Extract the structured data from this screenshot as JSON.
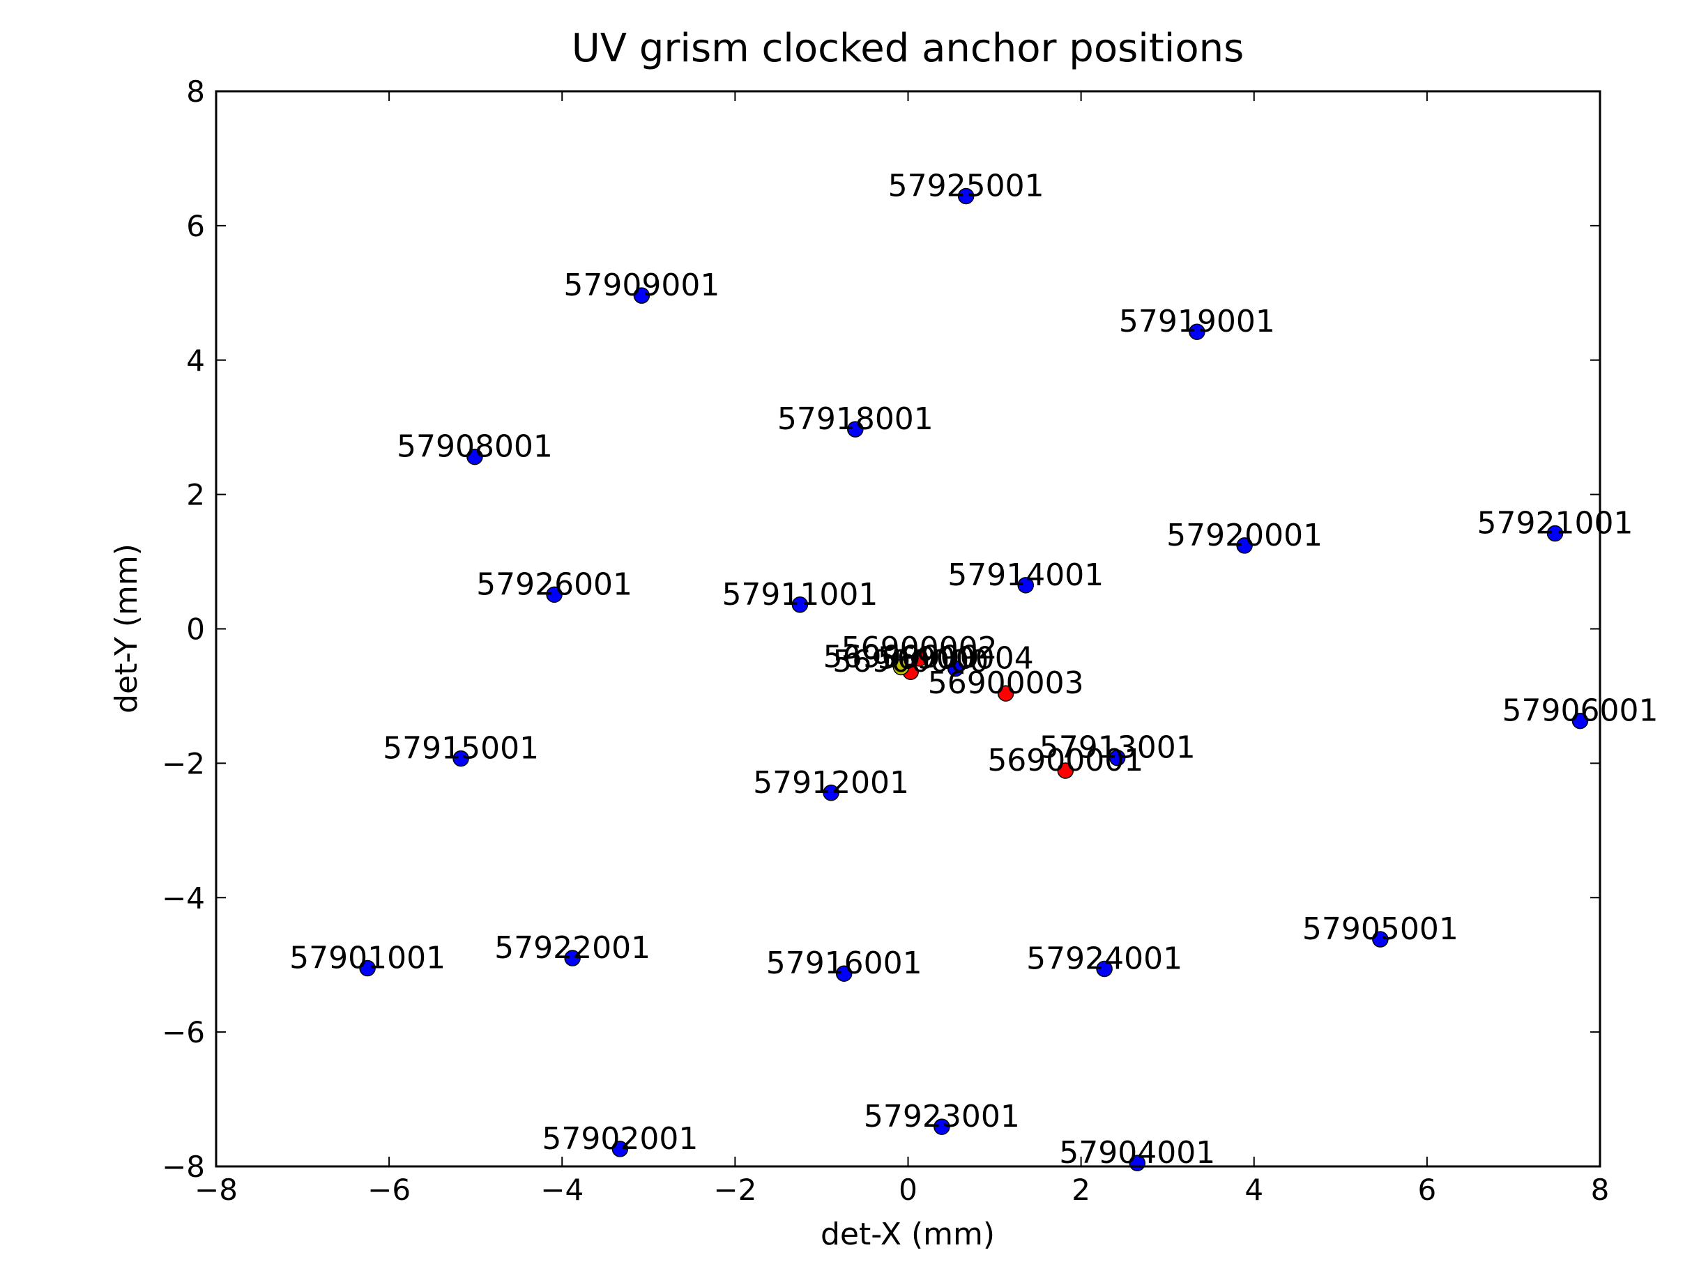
{
  "chart_data": {
    "type": "scatter",
    "title": "UV grism clocked anchor positions",
    "x_label": "det-X (mm)",
    "y_label": "det-Y (mm)",
    "xlim": [
      -8,
      8
    ],
    "ylim": [
      -8,
      8
    ],
    "xticks": [
      {
        "value": -8,
        "label": "−8"
      },
      {
        "value": -6,
        "label": "−6"
      },
      {
        "value": -4,
        "label": "−4"
      },
      {
        "value": -2,
        "label": "−2"
      },
      0,
      2,
      4,
      6,
      8
    ],
    "yticks": [
      {
        "value": -8,
        "label": "−8"
      },
      {
        "value": -6,
        "label": "−6"
      },
      {
        "value": -4,
        "label": "−4"
      },
      {
        "value": -2,
        "label": "−2"
      },
      0,
      2,
      4,
      6,
      8
    ],
    "grid": false,
    "series": [
      {
        "color": "#0000ff",
        "x": [
          0.67,
          -3.08,
          3.34,
          -0.61,
          -5.01,
          7.48,
          3.89,
          1.36,
          -4.09,
          -1.25,
          7.77,
          -5.17,
          2.42,
          -0.89,
          5.46,
          -6.25,
          -3.88,
          -0.74,
          2.27,
          0.39,
          -3.33,
          2.65,
          0.55
        ],
        "values": [
          6.44,
          4.96,
          4.42,
          2.97,
          2.56,
          1.42,
          1.24,
          0.65,
          0.51,
          0.36,
          -1.37,
          -1.93,
          -1.92,
          -2.44,
          -4.62,
          -5.05,
          -4.9,
          -5.13,
          -5.06,
          -7.41,
          -7.74,
          -7.95,
          -0.59
        ],
        "labels": [
          "57925001",
          "57909001",
          "57919001",
          "57918001",
          "57908001",
          "57921001",
          "57920001",
          "57914001",
          "57926001",
          "57911001",
          "57906001",
          "57915001",
          "57913001",
          "57912001",
          "57905001",
          "57901001",
          "57922001",
          "57916001",
          "57924001",
          "57923001",
          "57902001",
          "57904001",
          "56900004"
        ]
      },
      {
        "color": "#ff0000",
        "x": [
          1.82,
          1.13,
          0.13,
          0.03
        ],
        "values": [
          -2.11,
          -0.96,
          -0.44,
          -0.64
        ],
        "labels": [
          "56900001",
          "56900003",
          "56900002",
          "56900000"
        ]
      },
      {
        "color": "#bfbf00",
        "x": [
          -0.08
        ],
        "values": [
          -0.57
        ],
        "labels": [
          "56900000"
        ]
      }
    ]
  }
}
